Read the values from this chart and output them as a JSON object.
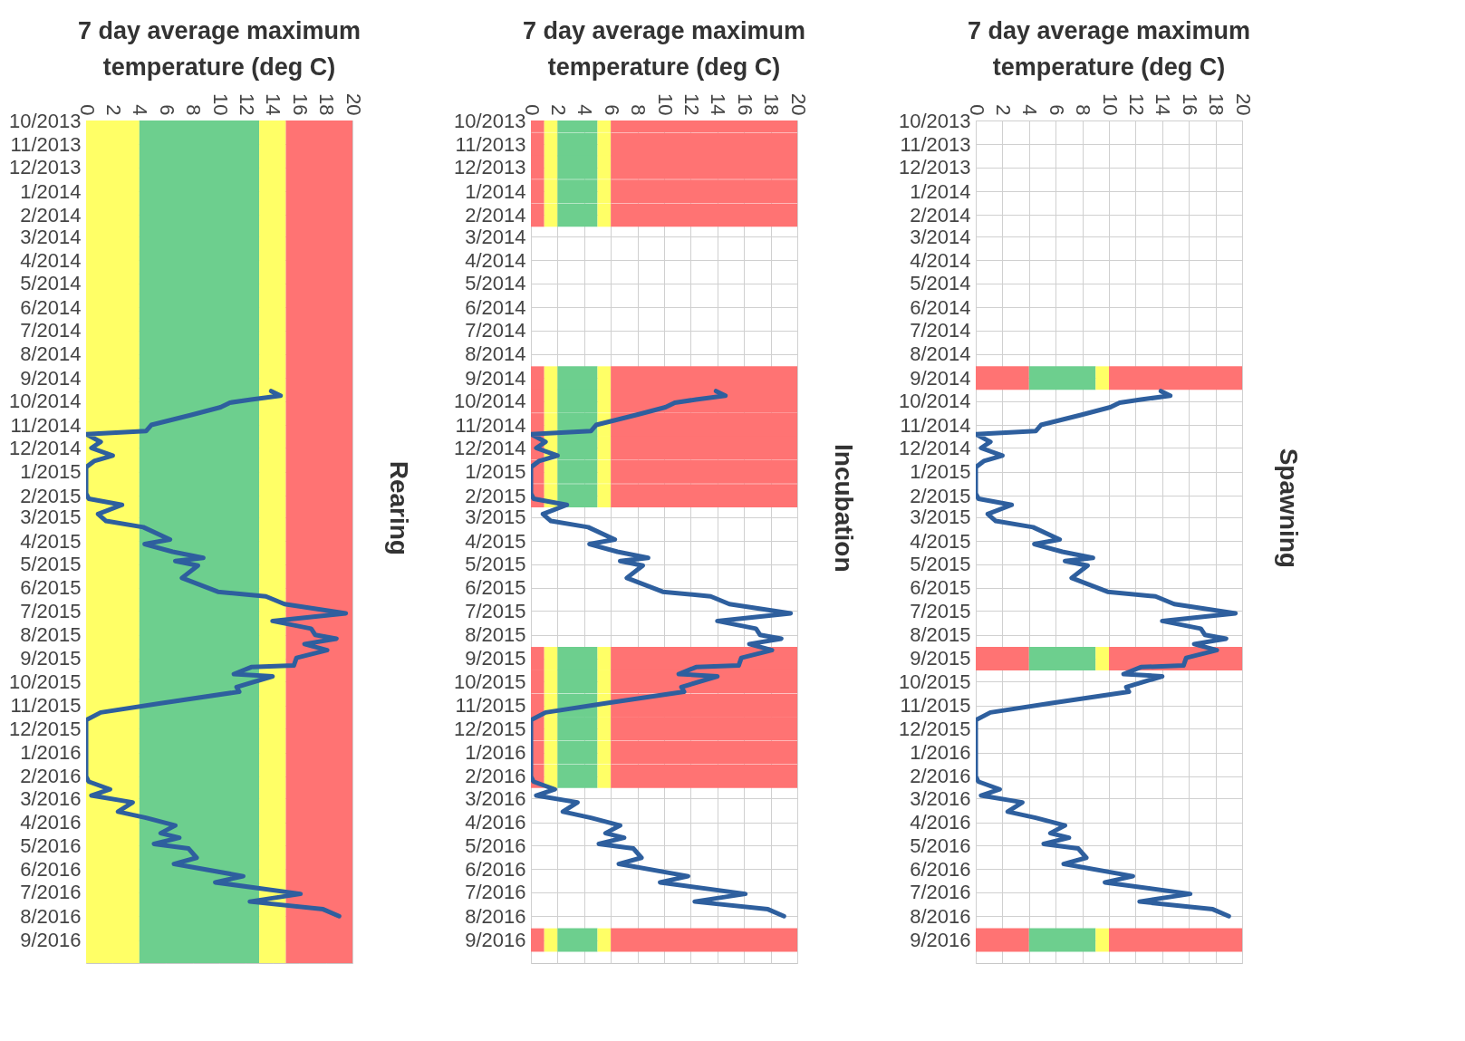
{
  "chart_data": [
    {
      "type": "line",
      "orientation": "horizontal",
      "title": "7 day average maximum temperature (deg C)",
      "annotations": [
        "Rearing"
      ],
      "xlim": [
        0,
        20
      ],
      "xticks": [
        0,
        2,
        4,
        6,
        8,
        10,
        12,
        14,
        16,
        18,
        20
      ],
      "ylim": [
        "2016-10",
        "2013-10"
      ],
      "yticks": [
        {
          "value": "2013-10",
          "label": "10/2013"
        },
        {
          "value": "2013-11",
          "label": "11/2013"
        },
        {
          "value": "2013-12",
          "label": "12/2013"
        },
        {
          "value": "2014-01",
          "label": "1/2014"
        },
        {
          "value": "2014-02",
          "label": "2/2014"
        },
        {
          "value": "2014-03",
          "label": "3/2014"
        },
        {
          "value": "2014-04",
          "label": "4/2014"
        },
        {
          "value": "2014-05",
          "label": "5/2014"
        },
        {
          "value": "2014-06",
          "label": "6/2014"
        },
        {
          "value": "2014-07",
          "label": "7/2014"
        },
        {
          "value": "2014-08",
          "label": "8/2014"
        },
        {
          "value": "2014-09",
          "label": "9/2014"
        },
        {
          "value": "2014-10",
          "label": "10/2014"
        },
        {
          "value": "2014-11",
          "label": "11/2014"
        },
        {
          "value": "2014-12",
          "label": "12/2014"
        },
        {
          "value": "2015-01",
          "label": "1/2015"
        },
        {
          "value": "2015-02",
          "label": "2/2015"
        },
        {
          "value": "2015-03",
          "label": "3/2015"
        },
        {
          "value": "2015-04",
          "label": "4/2015"
        },
        {
          "value": "2015-05",
          "label": "5/2015"
        },
        {
          "value": "2015-06",
          "label": "6/2015"
        },
        {
          "value": "2015-07",
          "label": "7/2015"
        },
        {
          "value": "2015-08",
          "label": "8/2015"
        },
        {
          "value": "2015-09",
          "label": "9/2015"
        },
        {
          "value": "2015-10",
          "label": "10/2015"
        },
        {
          "value": "2015-11",
          "label": "11/2015"
        },
        {
          "value": "2015-12",
          "label": "12/2015"
        },
        {
          "value": "2016-01",
          "label": "1/2016"
        },
        {
          "value": "2016-02",
          "label": "2/2016"
        },
        {
          "value": "2016-03",
          "label": "3/2016"
        },
        {
          "value": "2016-04",
          "label": "4/2016"
        },
        {
          "value": "2016-05",
          "label": "5/2016"
        },
        {
          "value": "2016-06",
          "label": "6/2016"
        },
        {
          "value": "2016-07",
          "label": "7/2016"
        },
        {
          "value": "2016-08",
          "label": "8/2016"
        },
        {
          "value": "2016-09",
          "label": "9/2016"
        }
      ],
      "grid": true,
      "bands": [
        {
          "axis": "x",
          "from": 0,
          "to": 4,
          "color": "#ffff66"
        },
        {
          "axis": "x",
          "from": 4,
          "to": 13,
          "color": "#6dcf8e"
        },
        {
          "axis": "x",
          "from": 13,
          "to": 15,
          "color": "#ffff66"
        },
        {
          "axis": "x",
          "from": 15,
          "to": 20,
          "color": "#ff7373"
        }
      ],
      "series": [
        {
          "color": "#2e5f9e",
          "x": [
            "2014-09-18",
            "2014-09-24",
            "2014-09-29",
            "2014-10-03",
            "2014-10-09",
            "2014-10-19",
            "2014-11-01",
            "2014-11-09",
            "2014-11-13",
            "2014-11-23",
            "2014-12-01",
            "2014-12-11",
            "2014-12-18",
            "2014-12-26",
            "2015-01-29",
            "2015-02-05",
            "2015-02-13",
            "2015-02-25",
            "2015-03-06",
            "2015-03-14",
            "2015-03-30",
            "2015-04-05",
            "2015-04-15",
            "2015-04-23",
            "2015-04-27",
            "2015-05-03",
            "2015-05-19",
            "2015-06-06",
            "2015-06-12",
            "2015-06-22",
            "2015-07-04",
            "2015-07-14",
            "2015-07-24",
            "2015-08-01",
            "2015-08-06",
            "2015-08-13",
            "2015-08-21",
            "2015-08-31",
            "2015-09-10",
            "2015-09-12",
            "2015-09-21",
            "2015-09-24",
            "2015-10-08",
            "2015-10-14",
            "2015-10-29",
            "2015-11-10",
            "2015-11-20",
            "2016-02-01",
            "2016-02-08",
            "2016-02-18",
            "2016-02-26",
            "2016-03-06",
            "2016-03-18",
            "2016-03-26",
            "2016-04-05",
            "2016-04-15",
            "2016-04-21",
            "2016-04-29",
            "2016-05-05",
            "2016-05-17",
            "2016-05-25",
            "2016-06-10",
            "2016-06-18",
            "2016-07-03",
            "2016-07-13",
            "2016-07-23",
            "2016-08-01"
          ],
          "values": [
            13.9,
            14.6,
            12.4,
            10.8,
            10.1,
            7.9,
            4.9,
            4.5,
            0,
            1.1,
            0.4,
            2.0,
            0.6,
            0,
            0,
            0.2,
            2.7,
            0.9,
            1.5,
            4.3,
            6.3,
            4.4,
            6.5,
            8.8,
            6.7,
            8.4,
            7.2,
            9.9,
            13.5,
            14.9,
            19.5,
            14.0,
            16.9,
            17.2,
            18.8,
            16.4,
            18.1,
            15.8,
            15.6,
            12.4,
            11.1,
            14.0,
            11.3,
            11.5,
            5.6,
            1.1,
            0,
            0,
            0.2,
            1.8,
            0.4,
            3.5,
            2.4,
            4.5,
            6.7,
            5.6,
            7.0,
            5.1,
            7.7,
            8.3,
            6.6,
            11.8,
            9.7,
            16.1,
            12.3,
            17.8,
            19.0
          ]
        }
      ]
    },
    {
      "type": "line",
      "orientation": "horizontal",
      "stacked": true,
      "title": "7 day average maximum temperature (deg C)",
      "annotations": [
        "Incubation"
      ],
      "xlim": [
        0,
        20
      ],
      "xticks": [
        0,
        2,
        4,
        6,
        8,
        10,
        12,
        14,
        16,
        18,
        20
      ],
      "ylim": [
        "2016-10",
        "2013-10"
      ],
      "yticks": [
        {
          "value": "2013-10",
          "label": "10/2013"
        },
        {
          "value": "2013-11",
          "label": "11/2013"
        },
        {
          "value": "2013-12",
          "label": "12/2013"
        },
        {
          "value": "2014-01",
          "label": "1/2014"
        },
        {
          "value": "2014-02",
          "label": "2/2014"
        },
        {
          "value": "2014-03",
          "label": "3/2014"
        },
        {
          "value": "2014-04",
          "label": "4/2014"
        },
        {
          "value": "2014-05",
          "label": "5/2014"
        },
        {
          "value": "2014-06",
          "label": "6/2014"
        },
        {
          "value": "2014-07",
          "label": "7/2014"
        },
        {
          "value": "2014-08",
          "label": "8/2014"
        },
        {
          "value": "2014-09",
          "label": "9/2014"
        },
        {
          "value": "2014-10",
          "label": "10/2014"
        },
        {
          "value": "2014-11",
          "label": "11/2014"
        },
        {
          "value": "2014-12",
          "label": "12/2014"
        },
        {
          "value": "2015-01",
          "label": "1/2015"
        },
        {
          "value": "2015-02",
          "label": "2/2015"
        },
        {
          "value": "2015-03",
          "label": "3/2015"
        },
        {
          "value": "2015-04",
          "label": "4/2015"
        },
        {
          "value": "2015-05",
          "label": "5/2015"
        },
        {
          "value": "2015-06",
          "label": "6/2015"
        },
        {
          "value": "2015-07",
          "label": "7/2015"
        },
        {
          "value": "2015-08",
          "label": "8/2015"
        },
        {
          "value": "2015-09",
          "label": "9/2015"
        },
        {
          "value": "2015-10",
          "label": "10/2015"
        },
        {
          "value": "2015-11",
          "label": "11/2015"
        },
        {
          "value": "2015-12",
          "label": "12/2015"
        },
        {
          "value": "2016-01",
          "label": "1/2016"
        },
        {
          "value": "2016-02",
          "label": "2/2016"
        },
        {
          "value": "2016-03",
          "label": "3/2016"
        },
        {
          "value": "2016-04",
          "label": "4/2016"
        },
        {
          "value": "2016-05",
          "label": "5/2016"
        },
        {
          "value": "2016-06",
          "label": "6/2016"
        },
        {
          "value": "2016-07",
          "label": "7/2016"
        },
        {
          "value": "2016-08",
          "label": "8/2016"
        },
        {
          "value": "2016-09",
          "label": "9/2016"
        }
      ],
      "grid": true,
      "series": [
        {
          "type": "bar",
          "color": "#ff7373",
          "x": [
            "2013-10",
            "2013-11",
            "2013-12",
            "2014-01",
            "2014-02",
            "2014-09",
            "2014-10",
            "2014-11",
            "2014-12",
            "2015-01",
            "2015-02",
            "2015-09",
            "2015-10",
            "2015-11",
            "2015-12",
            "2016-01",
            "2016-02",
            "2016-09"
          ],
          "values": [
            1,
            1,
            1,
            1,
            1,
            1,
            1,
            1,
            1,
            1,
            1,
            1,
            1,
            1,
            1,
            1,
            1,
            1
          ]
        },
        {
          "type": "bar",
          "color": "#ffff66",
          "x": [
            "2013-10",
            "2013-11",
            "2013-12",
            "2014-01",
            "2014-02",
            "2014-09",
            "2014-10",
            "2014-11",
            "2014-12",
            "2015-01",
            "2015-02",
            "2015-09",
            "2015-10",
            "2015-11",
            "2015-12",
            "2016-01",
            "2016-02",
            "2016-09"
          ],
          "values": [
            1,
            1,
            1,
            1,
            1,
            1,
            1,
            1,
            1,
            1,
            1,
            1,
            1,
            1,
            1,
            1,
            1,
            1
          ]
        },
        {
          "type": "bar",
          "color": "#6dcf8e",
          "x": [
            "2013-10",
            "2013-11",
            "2013-12",
            "2014-01",
            "2014-02",
            "2014-09",
            "2014-10",
            "2014-11",
            "2014-12",
            "2015-01",
            "2015-02",
            "2015-09",
            "2015-10",
            "2015-11",
            "2015-12",
            "2016-01",
            "2016-02",
            "2016-09"
          ],
          "values": [
            3,
            3,
            3,
            3,
            3,
            3,
            3,
            3,
            3,
            3,
            3,
            3,
            3,
            3,
            3,
            3,
            3,
            3
          ]
        },
        {
          "type": "bar",
          "color": "#ffff66",
          "x": [
            "2013-10",
            "2013-11",
            "2013-12",
            "2014-01",
            "2014-02",
            "2014-09",
            "2014-10",
            "2014-11",
            "2014-12",
            "2015-01",
            "2015-02",
            "2015-09",
            "2015-10",
            "2015-11",
            "2015-12",
            "2016-01",
            "2016-02",
            "2016-09"
          ],
          "values": [
            1,
            1,
            1,
            1,
            1,
            1,
            1,
            1,
            1,
            1,
            1,
            1,
            1,
            1,
            1,
            1,
            1,
            1
          ]
        },
        {
          "type": "bar",
          "color": "#ff7373",
          "x": [
            "2013-10",
            "2013-11",
            "2013-12",
            "2014-01",
            "2014-02",
            "2014-09",
            "2014-10",
            "2014-11",
            "2014-12",
            "2015-01",
            "2015-02",
            "2015-09",
            "2015-10",
            "2015-11",
            "2015-12",
            "2016-01",
            "2016-02",
            "2016-09"
          ],
          "values": [
            14,
            14,
            14,
            14,
            14,
            14,
            14,
            14,
            14,
            14,
            14,
            14,
            14,
            14,
            14,
            14,
            14,
            14
          ]
        },
        {
          "color": "#2e5f9e",
          "x": [
            "2014-09-18",
            "2014-09-24",
            "2014-09-29",
            "2014-10-03",
            "2014-10-09",
            "2014-10-19",
            "2014-11-01",
            "2014-11-09",
            "2014-11-13",
            "2014-11-23",
            "2014-12-01",
            "2014-12-11",
            "2014-12-18",
            "2014-12-26",
            "2015-01-29",
            "2015-02-05",
            "2015-02-13",
            "2015-02-25",
            "2015-03-06",
            "2015-03-14",
            "2015-03-30",
            "2015-04-05",
            "2015-04-15",
            "2015-04-23",
            "2015-04-27",
            "2015-05-03",
            "2015-05-19",
            "2015-06-06",
            "2015-06-12",
            "2015-06-22",
            "2015-07-04",
            "2015-07-14",
            "2015-07-24",
            "2015-08-01",
            "2015-08-06",
            "2015-08-13",
            "2015-08-21",
            "2015-08-31",
            "2015-09-10",
            "2015-09-12",
            "2015-09-21",
            "2015-09-24",
            "2015-10-08",
            "2015-10-14",
            "2015-10-29",
            "2015-11-10",
            "2015-11-20",
            "2016-02-01",
            "2016-02-08",
            "2016-02-18",
            "2016-02-26",
            "2016-03-06",
            "2016-03-18",
            "2016-03-26",
            "2016-04-05",
            "2016-04-15",
            "2016-04-21",
            "2016-04-29",
            "2016-05-05",
            "2016-05-17",
            "2016-05-25",
            "2016-06-10",
            "2016-06-18",
            "2016-07-03",
            "2016-07-13",
            "2016-07-23",
            "2016-08-01"
          ],
          "values": [
            13.9,
            14.6,
            12.4,
            10.8,
            10.1,
            7.9,
            4.9,
            4.5,
            0,
            1.1,
            0.4,
            2.0,
            0.6,
            0,
            0,
            0.2,
            2.7,
            0.9,
            1.5,
            4.3,
            6.3,
            4.4,
            6.5,
            8.8,
            6.7,
            8.4,
            7.2,
            9.9,
            13.5,
            14.9,
            19.5,
            14.0,
            16.9,
            17.2,
            18.8,
            16.4,
            18.1,
            15.8,
            15.6,
            12.4,
            11.1,
            14.0,
            11.3,
            11.5,
            5.6,
            1.1,
            0,
            0,
            0.2,
            1.8,
            0.4,
            3.5,
            2.4,
            4.5,
            6.7,
            5.6,
            7.0,
            5.1,
            7.7,
            8.3,
            6.6,
            11.8,
            9.7,
            16.1,
            12.3,
            17.8,
            19.0
          ]
        }
      ]
    },
    {
      "type": "line",
      "orientation": "horizontal",
      "stacked": true,
      "title": "7 day average maximum temperature (deg C)",
      "annotations": [
        "Spawning"
      ],
      "xlim": [
        0,
        20
      ],
      "xticks": [
        0,
        2,
        4,
        6,
        8,
        10,
        12,
        14,
        16,
        18,
        20
      ],
      "ylim": [
        "2016-10",
        "2013-10"
      ],
      "yticks": [
        {
          "value": "2013-10",
          "label": "10/2013"
        },
        {
          "value": "2013-11",
          "label": "11/2013"
        },
        {
          "value": "2013-12",
          "label": "12/2013"
        },
        {
          "value": "2014-01",
          "label": "1/2014"
        },
        {
          "value": "2014-02",
          "label": "2/2014"
        },
        {
          "value": "2014-03",
          "label": "3/2014"
        },
        {
          "value": "2014-04",
          "label": "4/2014"
        },
        {
          "value": "2014-05",
          "label": "5/2014"
        },
        {
          "value": "2014-06",
          "label": "6/2014"
        },
        {
          "value": "2014-07",
          "label": "7/2014"
        },
        {
          "value": "2014-08",
          "label": "8/2014"
        },
        {
          "value": "2014-09",
          "label": "9/2014"
        },
        {
          "value": "2014-10",
          "label": "10/2014"
        },
        {
          "value": "2014-11",
          "label": "11/2014"
        },
        {
          "value": "2014-12",
          "label": "12/2014"
        },
        {
          "value": "2015-01",
          "label": "1/2015"
        },
        {
          "value": "2015-02",
          "label": "2/2015"
        },
        {
          "value": "2015-03",
          "label": "3/2015"
        },
        {
          "value": "2015-04",
          "label": "4/2015"
        },
        {
          "value": "2015-05",
          "label": "5/2015"
        },
        {
          "value": "2015-06",
          "label": "6/2015"
        },
        {
          "value": "2015-07",
          "label": "7/2015"
        },
        {
          "value": "2015-08",
          "label": "8/2015"
        },
        {
          "value": "2015-09",
          "label": "9/2015"
        },
        {
          "value": "2015-10",
          "label": "10/2015"
        },
        {
          "value": "2015-11",
          "label": "11/2015"
        },
        {
          "value": "2015-12",
          "label": "12/2015"
        },
        {
          "value": "2016-01",
          "label": "1/2016"
        },
        {
          "value": "2016-02",
          "label": "2/2016"
        },
        {
          "value": "2016-03",
          "label": "3/2016"
        },
        {
          "value": "2016-04",
          "label": "4/2016"
        },
        {
          "value": "2016-05",
          "label": "5/2016"
        },
        {
          "value": "2016-06",
          "label": "6/2016"
        },
        {
          "value": "2016-07",
          "label": "7/2016"
        },
        {
          "value": "2016-08",
          "label": "8/2016"
        },
        {
          "value": "2016-09",
          "label": "9/2016"
        }
      ],
      "grid": true,
      "series": [
        {
          "type": "bar",
          "color": "#ff7373",
          "x": [
            "2014-09",
            "2015-09",
            "2016-09"
          ],
          "values": [
            4,
            4,
            4
          ]
        },
        {
          "type": "bar",
          "color": "#6dcf8e",
          "x": [
            "2014-09",
            "2015-09",
            "2016-09"
          ],
          "values": [
            5,
            5,
            5
          ]
        },
        {
          "type": "bar",
          "color": "#ffff66",
          "x": [
            "2014-09",
            "2015-09",
            "2016-09"
          ],
          "values": [
            1,
            1,
            1
          ]
        },
        {
          "type": "bar",
          "color": "#ff7373",
          "x": [
            "2014-09",
            "2015-09",
            "2016-09"
          ],
          "values": [
            10,
            10,
            10
          ]
        },
        {
          "color": "#2e5f9e",
          "x": [
            "2014-09-18",
            "2014-09-24",
            "2014-09-29",
            "2014-10-03",
            "2014-10-09",
            "2014-10-19",
            "2014-11-01",
            "2014-11-09",
            "2014-11-13",
            "2014-11-23",
            "2014-12-01",
            "2014-12-11",
            "2014-12-18",
            "2014-12-26",
            "2015-01-29",
            "2015-02-05",
            "2015-02-13",
            "2015-02-25",
            "2015-03-06",
            "2015-03-14",
            "2015-03-30",
            "2015-04-05",
            "2015-04-15",
            "2015-04-23",
            "2015-04-27",
            "2015-05-03",
            "2015-05-19",
            "2015-06-06",
            "2015-06-12",
            "2015-06-22",
            "2015-07-04",
            "2015-07-14",
            "2015-07-24",
            "2015-08-01",
            "2015-08-06",
            "2015-08-13",
            "2015-08-21",
            "2015-08-31",
            "2015-09-10",
            "2015-09-12",
            "2015-09-21",
            "2015-09-24",
            "2015-10-08",
            "2015-10-14",
            "2015-10-29",
            "2015-11-10",
            "2015-11-20",
            "2016-02-01",
            "2016-02-08",
            "2016-02-18",
            "2016-02-26",
            "2016-03-06",
            "2016-03-18",
            "2016-03-26",
            "2016-04-05",
            "2016-04-15",
            "2016-04-21",
            "2016-04-29",
            "2016-05-05",
            "2016-05-17",
            "2016-05-25",
            "2016-06-10",
            "2016-06-18",
            "2016-07-03",
            "2016-07-13",
            "2016-07-23",
            "2016-08-01"
          ],
          "values": [
            13.9,
            14.6,
            12.4,
            10.8,
            10.1,
            7.9,
            4.9,
            4.5,
            0,
            1.1,
            0.4,
            2.0,
            0.6,
            0,
            0,
            0.2,
            2.7,
            0.9,
            1.5,
            4.3,
            6.3,
            4.4,
            6.5,
            8.8,
            6.7,
            8.4,
            7.2,
            9.9,
            13.5,
            14.9,
            19.5,
            14.0,
            16.9,
            17.2,
            18.8,
            16.4,
            18.1,
            15.8,
            15.6,
            12.4,
            11.1,
            14.0,
            11.3,
            11.5,
            5.6,
            1.1,
            0,
            0,
            0.2,
            1.8,
            0.4,
            3.5,
            2.4,
            4.5,
            6.7,
            5.6,
            7.0,
            5.1,
            7.7,
            8.3,
            6.6,
            11.8,
            9.7,
            16.1,
            12.3,
            17.8,
            19.0
          ]
        }
      ]
    }
  ]
}
